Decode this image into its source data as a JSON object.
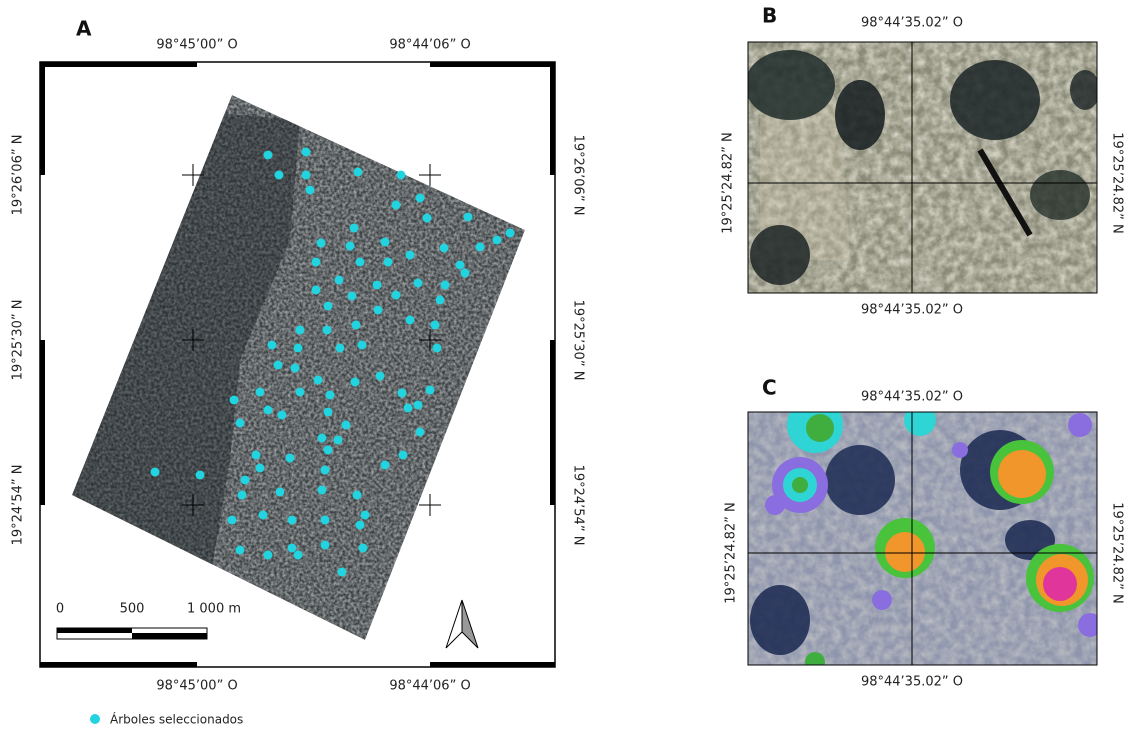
{
  "panels": [
    {
      "label": "A",
      "top_labels": [
        "98°45’00” O",
        "98°44’06” O"
      ],
      "bottom_labels": [
        "98°45’00” O",
        "98°44’06” O"
      ],
      "left_labels": [
        "19°26’06” N",
        "19°25’30” N",
        "19°24’54” N"
      ],
      "right_labels": [
        "19°26’06” N",
        "19°25’30” N",
        "19°24’54” N"
      ],
      "scale_bar": [
        "0",
        "500",
        "1 000 m"
      ]
    },
    {
      "label": "B",
      "top_label": "98°44’35.02” O",
      "bottom_label": "98°44’35.02” O",
      "left_label": "19°25’24.82” N",
      "right_label": "19°25’24.82” N"
    },
    {
      "label": "C",
      "top_label": "98°44’35.02” O",
      "bottom_label": "98°44’35.02” O",
      "left_label": "19°25’24.82” N",
      "right_label": "19°25’24.82” N"
    }
  ],
  "legend": {
    "label": "Árboles seleccionados"
  }
}
